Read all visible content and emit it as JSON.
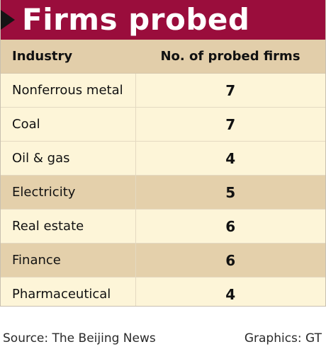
{
  "chart_data": {
    "type": "table",
    "title": "Firms probed",
    "columns": [
      "Industry",
      "No. of probed firms"
    ],
    "rows": [
      {
        "industry": "Nonferrous metal",
        "value": 7
      },
      {
        "industry": "Coal",
        "value": 7
      },
      {
        "industry": "Oil & gas",
        "value": 4
      },
      {
        "industry": "Electricity",
        "value": 5
      },
      {
        "industry": "Real estate",
        "value": 6
      },
      {
        "industry": "Finance",
        "value": 6
      },
      {
        "industry": "Pharmaceutical",
        "value": 4
      }
    ],
    "banded_rows": [
      false,
      false,
      false,
      true,
      false,
      true,
      false
    ],
    "colors": {
      "banner": "#9a0d3c",
      "header": "#e2ceaa",
      "band": "#e4d0ab",
      "body": "#fdf5d8"
    }
  },
  "footer": {
    "source": "Source: The Beijing News",
    "credit": "Graphics: GT"
  }
}
